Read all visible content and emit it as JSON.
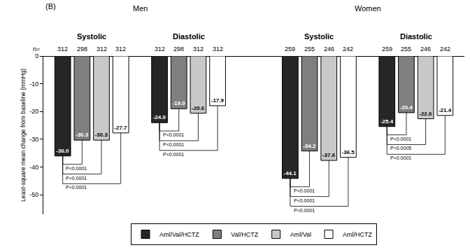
{
  "chart_data": {
    "type": "bar",
    "title": "(B)",
    "y_label": "Least-square mean change from baseline (mmHg)",
    "n_label": "n=",
    "ylim": [
      -57,
      0
    ],
    "yticks": [
      0,
      -10,
      -20,
      -30,
      -40,
      -50
    ],
    "grid": false,
    "legend": "bottom",
    "data_labels": true,
    "panels": [
      {
        "title": "Men",
        "groups": [
          {
            "category": "Systolic",
            "comparisons": [
              {
                "between": [
                  "Aml/Val/HCTZ",
                  "Val/HCTZ"
                ],
                "label": "P<0.0001"
              },
              {
                "between": [
                  "Aml/Val/HCTZ",
                  "Aml/Val"
                ],
                "label": "P<0.0001"
              },
              {
                "between": [
                  "Aml/Val/HCTZ",
                  "Aml/HCTZ"
                ],
                "label": "P<0.0001"
              }
            ]
          },
          {
            "category": "Diastolic",
            "comparisons": [
              {
                "between": [
                  "Aml/Val/HCTZ",
                  "Val/HCTZ"
                ],
                "label": "P<0.0001"
              },
              {
                "between": [
                  "Aml/Val/HCTZ",
                  "Aml/Val"
                ],
                "label": "P<0.0001"
              },
              {
                "between": [
                  "Aml/Val/HCTZ",
                  "Aml/HCTZ"
                ],
                "label": "P<0.0001"
              }
            ]
          }
        ]
      },
      {
        "title": "Women",
        "groups": [
          {
            "category": "Systolic",
            "comparisons": [
              {
                "between": [
                  "Aml/Val/HCTZ",
                  "Val/HCTZ"
                ],
                "label": "P<0.0001"
              },
              {
                "between": [
                  "Aml/Val/HCTZ",
                  "Aml/Val"
                ],
                "label": "P<0.0001"
              },
              {
                "between": [
                  "Aml/Val/HCTZ",
                  "Aml/HCTZ"
                ],
                "label": "P<0.0001"
              }
            ]
          },
          {
            "category": "Diastolic",
            "comparisons": [
              {
                "between": [
                  "Aml/Val/HCTZ",
                  "Val/HCTZ"
                ],
                "label": "P<0.0001"
              },
              {
                "between": [
                  "Aml/Val/HCTZ",
                  "Aml/Val"
                ],
                "label": "P=0.0005"
              },
              {
                "between": [
                  "Aml/Val/HCTZ",
                  "Aml/HCTZ"
                ],
                "label": "P<0.0001"
              }
            ]
          }
        ]
      }
    ],
    "series": [
      {
        "name": "Aml/Val/HCTZ",
        "color": "#262626",
        "values": [
          -36.0,
          -24.0,
          -44.1,
          -25.4
        ],
        "value_labels": [
          "-36.0",
          "-24.0",
          "-44.1",
          "-25.4"
        ],
        "n": [
          312,
          312,
          259,
          259
        ]
      },
      {
        "name": "Val/HCTZ",
        "color": "#7f7f7f",
        "values": [
          -30.3,
          -19.0,
          -34.2,
          -20.4
        ],
        "value_labels": [
          "-30.3",
          "-19.0",
          "-34.2",
          "-20.4"
        ],
        "n": [
          298,
          298,
          255,
          255
        ]
      },
      {
        "name": "Aml/Val",
        "color": "#c8c8c8",
        "values": [
          -30.3,
          -20.6,
          -37.6,
          -22.6
        ],
        "value_labels": [
          "-30.3",
          "-20.6",
          "-37.6",
          "-22.6"
        ],
        "n": [
          312,
          312,
          246,
          246
        ]
      },
      {
        "name": "Aml/HCTZ",
        "color": "#ffffff",
        "values": [
          -27.7,
          -17.9,
          -36.5,
          -21.4
        ],
        "value_labels": [
          "-27.7",
          "-17.9",
          "-36.5",
          "-21.4"
        ],
        "n": [
          312,
          312,
          242,
          242
        ]
      }
    ]
  }
}
